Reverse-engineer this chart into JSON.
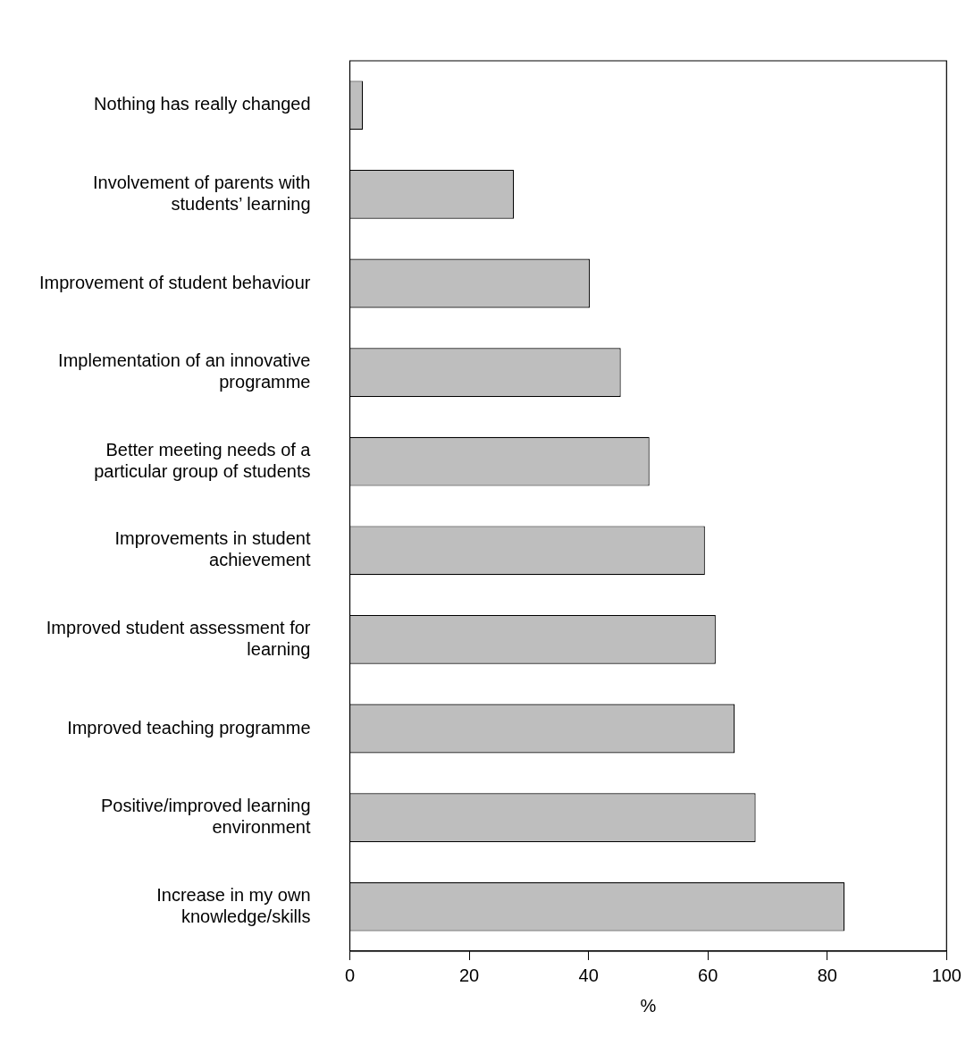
{
  "chart_data": {
    "type": "bar",
    "orientation": "horizontal",
    "xlabel": "%",
    "categories": [
      "Nothing has really changed",
      "Involvement of parents with\nstudents’ learning",
      "Improvement of student behaviour",
      "Implementation of an innovative\nprogramme",
      "Better meeting needs of a\nparticular group of students",
      "Improvements in student\nachievement",
      "Improved student assessment for\nlearning",
      "Improved teaching programme",
      "Positive/improved learning\nenvironment",
      "Increase in my own\nknowledge/skills"
    ],
    "values": [
      2.2,
      27.5,
      40.2,
      45.4,
      50.2,
      59.5,
      61.3,
      64.5,
      68,
      82.9
    ],
    "color": "#bebebe",
    "xlim": [
      0,
      100
    ],
    "xticks": [
      0,
      20,
      40,
      60,
      80,
      100
    ],
    "grid": false,
    "legend": false
  }
}
